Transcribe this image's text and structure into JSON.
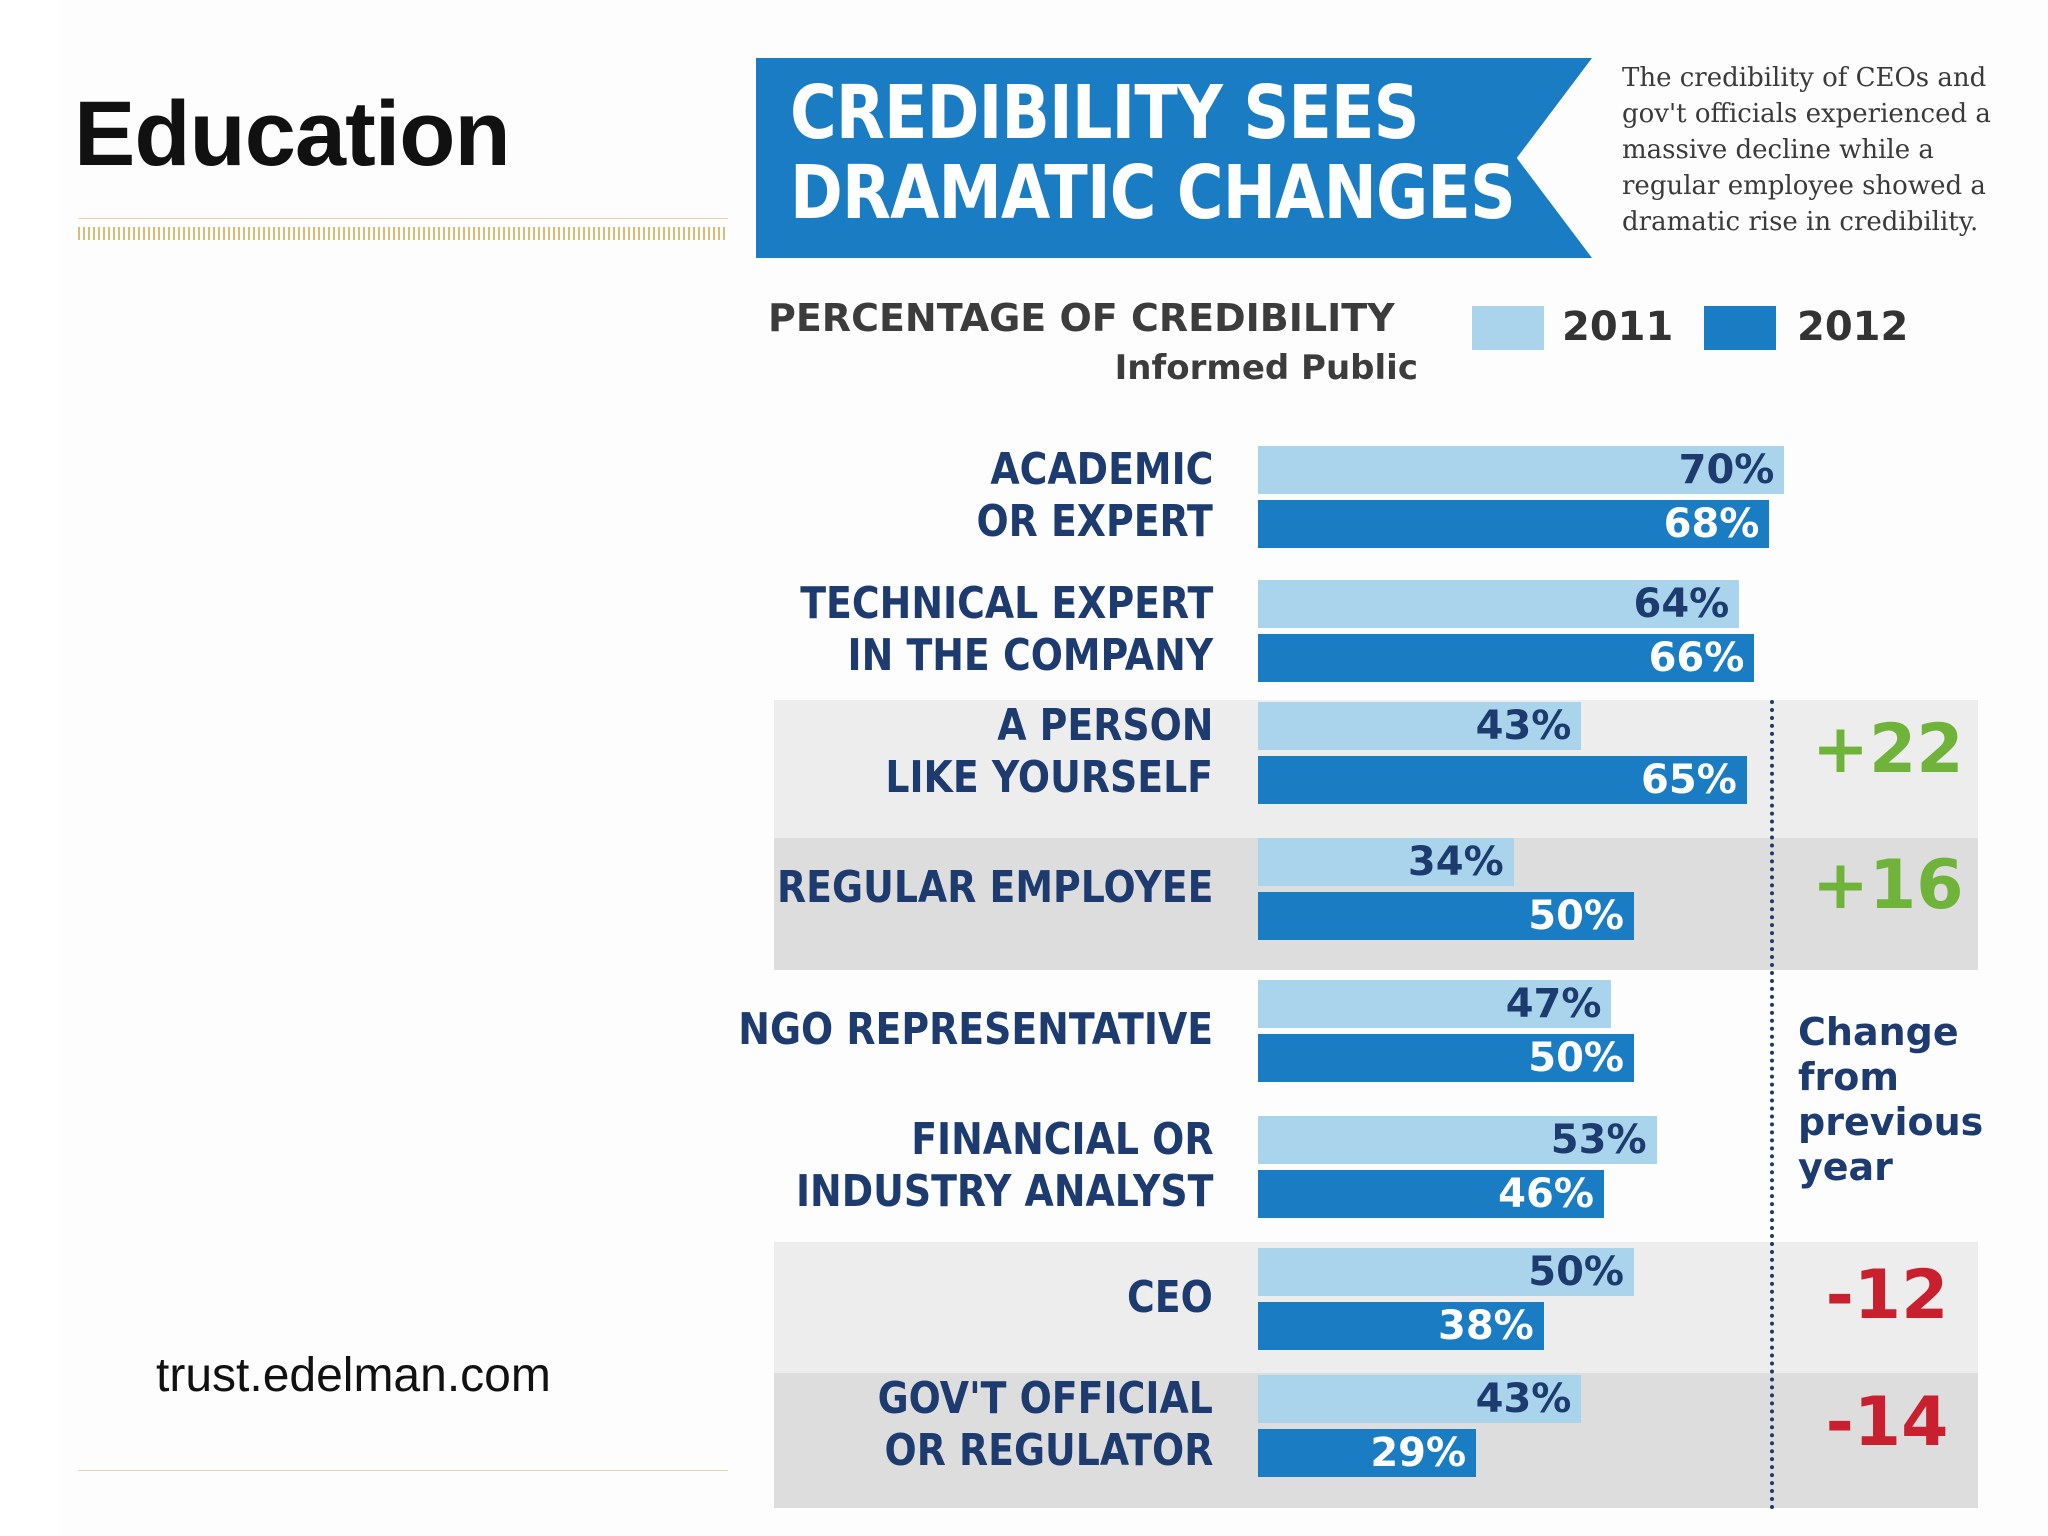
{
  "slide": {
    "title": "Education",
    "source": "trust.edelman.com"
  },
  "banner": {
    "line1": "CREDIBILITY SEES",
    "line2": "DRAMATIC CHANGES",
    "color": "#1a7cc2"
  },
  "blurb": [
    "The credibility of CEOs and",
    "gov't officials experienced a",
    "massive decline while a",
    "regular employee showed a",
    "dramatic rise in credibility."
  ],
  "change_note": [
    "Change",
    "from",
    "previous",
    "year"
  ],
  "colors": {
    "bar_2011": "#aad4ec",
    "bar_2012": "#1a7cc2",
    "positive_change": "#6fb33a",
    "negative_change": "#c8202f",
    "label": "#1d3b6e"
  },
  "chart_data": {
    "type": "bar",
    "orientation": "horizontal",
    "title": "PERCENTAGE OF CREDIBILITY",
    "subtitle": "Informed Public",
    "legend_position": "top-right",
    "ylim": [
      0,
      100
    ],
    "categories": [
      [
        "ACADEMIC",
        "OR EXPERT"
      ],
      [
        "TECHNICAL EXPERT",
        "IN THE COMPANY"
      ],
      [
        "A PERSON",
        "LIKE YOURSELF"
      ],
      [
        "REGULAR EMPLOYEE"
      ],
      [
        "NGO REPRESENTATIVE"
      ],
      [
        "FINANCIAL OR",
        "INDUSTRY ANALYST"
      ],
      [
        "CEO"
      ],
      [
        "GOV'T OFFICIAL",
        "OR REGULATOR"
      ]
    ],
    "series": [
      {
        "name": "2011",
        "values": [
          70,
          64,
          43,
          34,
          47,
          53,
          50,
          43
        ],
        "labels": [
          "70%",
          "64%",
          "43%",
          "34%",
          "47%",
          "53%",
          "50%",
          "43%"
        ]
      },
      {
        "name": "2012",
        "values": [
          68,
          66,
          65,
          50,
          50,
          46,
          38,
          29
        ],
        "labels": [
          "68%",
          "66%",
          "65%",
          "50%",
          "50%",
          "46%",
          "38%",
          "29%"
        ]
      }
    ],
    "changes": [
      null,
      null,
      "+22",
      "+16",
      null,
      null,
      "-12",
      "-14"
    ]
  }
}
